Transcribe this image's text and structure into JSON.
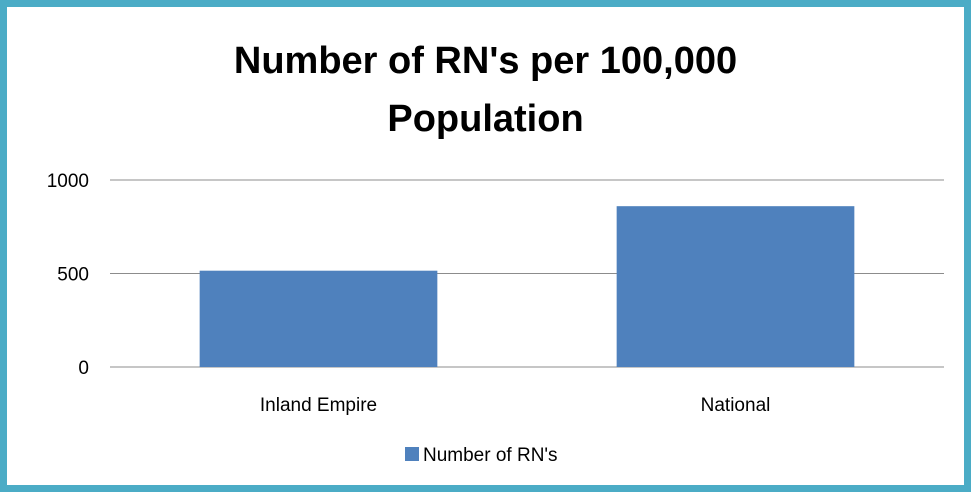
{
  "chart_data": {
    "type": "bar",
    "title_lines": [
      "Number of RN's per 100,000",
      "Population"
    ],
    "categories": [
      "Inland Empire",
      "National"
    ],
    "series": [
      {
        "name": "Number of RN's",
        "values": [
          515,
          860
        ],
        "color": "#4f81bd"
      }
    ],
    "ylim": [
      0,
      1000
    ],
    "y_ticks": [
      "0",
      "500",
      "1000"
    ],
    "grid": true,
    "legend_position": "bottom",
    "xlabel": "",
    "ylabel": ""
  },
  "colors": {
    "border": "#4bacc6",
    "bar": "#4f81bd",
    "gridline": "#8c8c8c"
  }
}
